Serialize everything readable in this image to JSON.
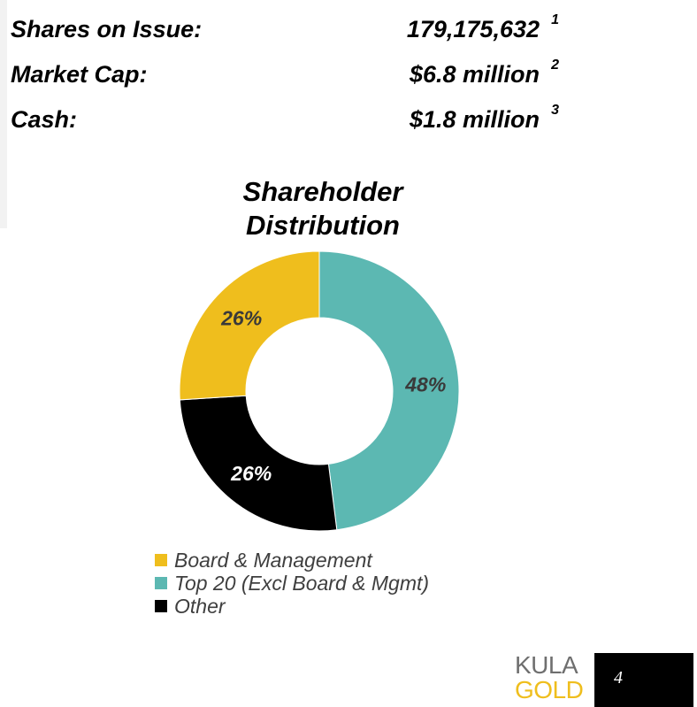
{
  "stats": [
    {
      "label": "Shares on Issue:",
      "value": "179,175,632",
      "note": "1"
    },
    {
      "label": "Market Cap:",
      "value": "$6.8 million",
      "note": "2"
    },
    {
      "label": "Cash:",
      "value": "$1.8 million",
      "note": "3"
    }
  ],
  "chart_data": {
    "type": "pie",
    "title_line1": "Shareholder",
    "title_line2": "Distribution",
    "categories": [
      "Top 20 (Excl Board & Mgmt)",
      "Other",
      "Board & Management"
    ],
    "values": [
      48,
      26,
      26
    ],
    "data_labels": [
      "48%",
      "26%",
      "26%"
    ],
    "colors": [
      "#5cb8b2",
      "#000000",
      "#efbe1d"
    ],
    "label_colors": [
      "#3a3a3a",
      "#ffffff",
      "#3a3a3a"
    ],
    "donut": true,
    "legend_position": "bottom",
    "legend": [
      {
        "label": "Board & Management",
        "color": "#efbe1d"
      },
      {
        "label": "Top 20 (Excl Board & Mgmt)",
        "color": "#5cb8b2"
      },
      {
        "label": "Other",
        "color": "#000000"
      }
    ]
  },
  "logo": {
    "line1": "KULA",
    "line2": "GOLD"
  },
  "page_number": "4"
}
